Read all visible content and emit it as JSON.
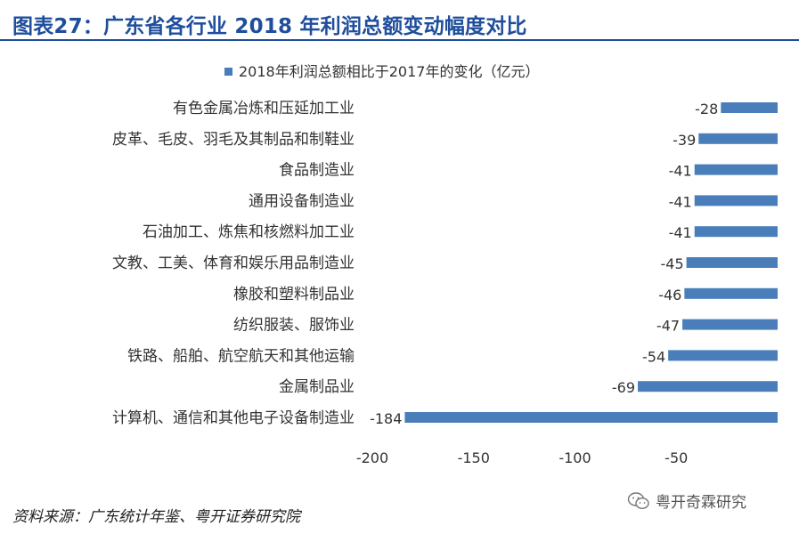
{
  "header": {
    "title": "图表27：广东省各行业 2018 年利润总额变动幅度对比"
  },
  "footer": {
    "source": "资料来源：广东统计年鉴、粤开证券研究院",
    "watermark_text": "粤开奇霖研究",
    "watermark_icon": "wechat-icon"
  },
  "chart_data": {
    "type": "bar",
    "orientation": "horizontal",
    "title": "",
    "xlabel": "",
    "ylabel": "",
    "categories": [
      "有色金属冶炼和压延加工业",
      "皮革、毛皮、羽毛及其制品和制鞋业",
      "食品制造业",
      "通用设备制造业",
      "石油加工、炼焦和核燃料加工业",
      "文教、工美、体育和娱乐用品制造业",
      "橡胶和塑料制品业",
      "纺织服装、服饰业",
      "铁路、船舶、航空航天和其他运输",
      "金属制品业",
      "计算机、通信和其他电子设备制造业"
    ],
    "series": [
      {
        "name": "2018年利润总额相比于2017年的变化（亿元）",
        "values": [
          -28,
          -39,
          -41,
          -41,
          -41,
          -45,
          -46,
          -47,
          -54,
          -69,
          -184
        ],
        "color": "#4a7ebb"
      }
    ],
    "xlim": [
      -200,
      0
    ],
    "xticks": [
      -200,
      -150,
      -100,
      -50
    ],
    "legend": "top-center",
    "grid": false,
    "data_labels": true
  }
}
